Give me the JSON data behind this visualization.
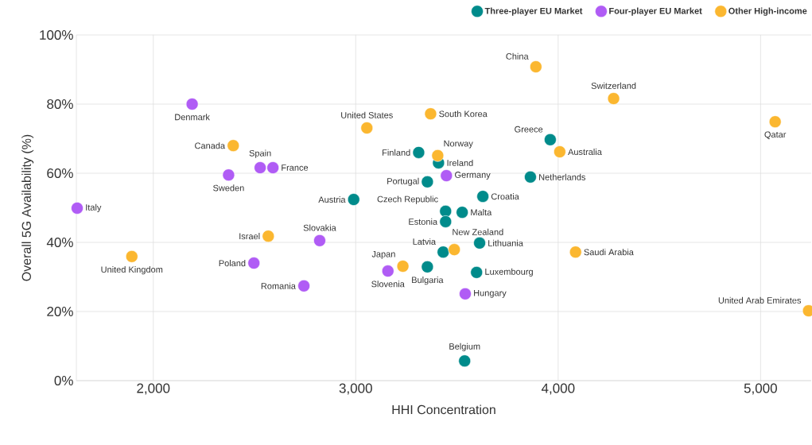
{
  "chart_data": {
    "type": "scatter",
    "xlabel": "HHI Concentration",
    "ylabel": "Overall 5G Availability (%)",
    "xlim": [
      1620,
      5250
    ],
    "ylim": [
      0,
      100
    ],
    "xticks": [
      {
        "value": 2000,
        "label": "2,000"
      },
      {
        "value": 3000,
        "label": "3,000"
      },
      {
        "value": 4000,
        "label": "4,000"
      },
      {
        "value": 5000,
        "label": "5,000"
      }
    ],
    "yticks": [
      {
        "value": 0,
        "label": "0%"
      },
      {
        "value": 20,
        "label": "20%"
      },
      {
        "value": 40,
        "label": "40%"
      },
      {
        "value": 60,
        "label": "60%"
      },
      {
        "value": 80,
        "label": "80%"
      },
      {
        "value": 100,
        "label": "100%"
      }
    ],
    "grid": true,
    "legend": "top right",
    "series": [
      {
        "name": "Three-player EU Market",
        "color": "#008b8b",
        "x": [
          3311,
          3409,
          3961,
          3863,
          3354,
          3628,
          2990,
          3444,
          3526,
          3444,
          3612,
          3432,
          3354,
          3597,
          3538
        ],
        "values": [
          66.0,
          63.0,
          69.7,
          58.9,
          57.5,
          53.3,
          52.4,
          49.0,
          48.7,
          46.0,
          39.8,
          37.2,
          32.9,
          31.3,
          5.7
        ]
      },
      {
        "name": "Four-player EU Market",
        "color": "#b05cf5",
        "x": [
          2192,
          2372,
          2528,
          2591,
          3448,
          1624,
          2822,
          2497,
          2744,
          3159,
          3541
        ],
        "values": [
          80.0,
          59.5,
          61.6,
          61.6,
          59.3,
          49.9,
          40.5,
          34.0,
          27.4,
          31.7,
          25.1
        ]
      },
      {
        "name": "Other High-income",
        "color": "#fbb730",
        "x": [
          3890,
          4274,
          3055,
          3370,
          5072,
          2395,
          4008,
          3405,
          2568,
          3487,
          4086,
          3233,
          1894,
          5237
        ],
        "values": [
          90.8,
          81.6,
          73.1,
          77.2,
          74.9,
          68.0,
          66.2,
          65.1,
          41.8,
          37.9,
          37.2,
          33.1,
          35.9,
          20.2
        ]
      }
    ],
    "annotations": [
      {
        "text": "Finland",
        "x": 3311,
        "y": 66.0
      },
      {
        "text": "Ireland",
        "x": 3409,
        "y": 63.0
      },
      {
        "text": "Greece",
        "x": 3961,
        "y": 69.7
      },
      {
        "text": "Netherlands",
        "x": 3863,
        "y": 58.9
      },
      {
        "text": "Portugal",
        "x": 3354,
        "y": 57.5
      },
      {
        "text": "Croatia",
        "x": 3628,
        "y": 53.3
      },
      {
        "text": "Austria",
        "x": 2990,
        "y": 52.4
      },
      {
        "text": "Czech Republic",
        "x": 3444,
        "y": 49.0
      },
      {
        "text": "Malta",
        "x": 3526,
        "y": 48.7
      },
      {
        "text": "Estonia",
        "x": 3444,
        "y": 46.0
      },
      {
        "text": "Lithuania",
        "x": 3612,
        "y": 39.8
      },
      {
        "text": "Latvia",
        "x": 3432,
        "y": 37.2
      },
      {
        "text": "Bulgaria",
        "x": 3354,
        "y": 32.9
      },
      {
        "text": "Luxembourg",
        "x": 3597,
        "y": 31.3
      },
      {
        "text": "Belgium",
        "x": 3538,
        "y": 5.7
      },
      {
        "text": "Denmark",
        "x": 2192,
        "y": 80.0
      },
      {
        "text": "Sweden",
        "x": 2372,
        "y": 59.5
      },
      {
        "text": "Spain",
        "x": 2528,
        "y": 61.6
      },
      {
        "text": "France",
        "x": 2591,
        "y": 61.6
      },
      {
        "text": "Germany",
        "x": 3448,
        "y": 59.3
      },
      {
        "text": "Italy",
        "x": 1624,
        "y": 49.9
      },
      {
        "text": "Slovakia",
        "x": 2822,
        "y": 40.5
      },
      {
        "text": "Poland",
        "x": 2497,
        "y": 34.0
      },
      {
        "text": "Romania",
        "x": 2744,
        "y": 27.4
      },
      {
        "text": "Slovenia",
        "x": 3159,
        "y": 31.7
      },
      {
        "text": "Hungary",
        "x": 3541,
        "y": 25.1
      },
      {
        "text": "China",
        "x": 3890,
        "y": 90.8
      },
      {
        "text": "Switzerland",
        "x": 4274,
        "y": 81.6
      },
      {
        "text": "United States",
        "x": 3055,
        "y": 73.1
      },
      {
        "text": "South Korea",
        "x": 3370,
        "y": 77.2
      },
      {
        "text": "Qatar",
        "x": 5072,
        "y": 74.9
      },
      {
        "text": "Canada",
        "x": 2395,
        "y": 68.0
      },
      {
        "text": "Australia",
        "x": 4008,
        "y": 66.2
      },
      {
        "text": "Norway",
        "x": 3405,
        "y": 65.1
      },
      {
        "text": "Israel",
        "x": 2568,
        "y": 41.8
      },
      {
        "text": "New Zealand",
        "x": 3487,
        "y": 37.9
      },
      {
        "text": "Saudi Arabia",
        "x": 4086,
        "y": 37.2
      },
      {
        "text": "Japan",
        "x": 3233,
        "y": 33.1
      },
      {
        "text": "United Kingdom",
        "x": 1894,
        "y": 35.9
      },
      {
        "text": "United Arab Emirates",
        "x": 5237,
        "y": 20.2
      }
    ]
  }
}
